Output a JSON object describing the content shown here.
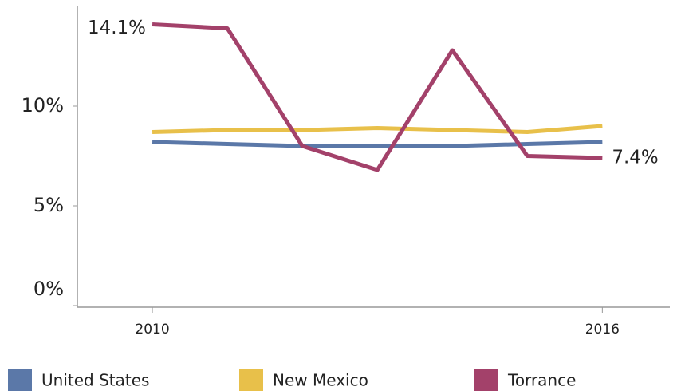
{
  "chart_data": {
    "type": "line",
    "x": [
      2010,
      2011,
      2012,
      2013,
      2014,
      2015,
      2016
    ],
    "xlim": [
      2009,
      2016.9
    ],
    "xticks": [
      2010,
      2016
    ],
    "ylim": [
      0,
      15
    ],
    "yticks": [
      {
        "value": 0,
        "label": "0%"
      },
      {
        "value": 5,
        "label": "5%"
      },
      {
        "value": 10,
        "label": "10%"
      }
    ],
    "grid": false,
    "legend": "bottom",
    "series": [
      {
        "name": "United States",
        "color": "#5b78a8",
        "values": [
          8.2,
          8.1,
          8.0,
          8.0,
          8.0,
          8.1,
          8.2
        ]
      },
      {
        "name": "New Mexico",
        "color": "#e8c04a",
        "values": [
          8.7,
          8.8,
          8.8,
          8.9,
          8.8,
          8.7,
          9.0
        ]
      },
      {
        "name": "Torrance",
        "color": "#a3416a",
        "values": [
          14.1,
          13.9,
          8.0,
          6.8,
          12.8,
          7.5,
          7.4
        ],
        "value_labels": [
          "14.1%",
          null,
          null,
          null,
          null,
          null,
          "7.4%"
        ]
      }
    ]
  }
}
